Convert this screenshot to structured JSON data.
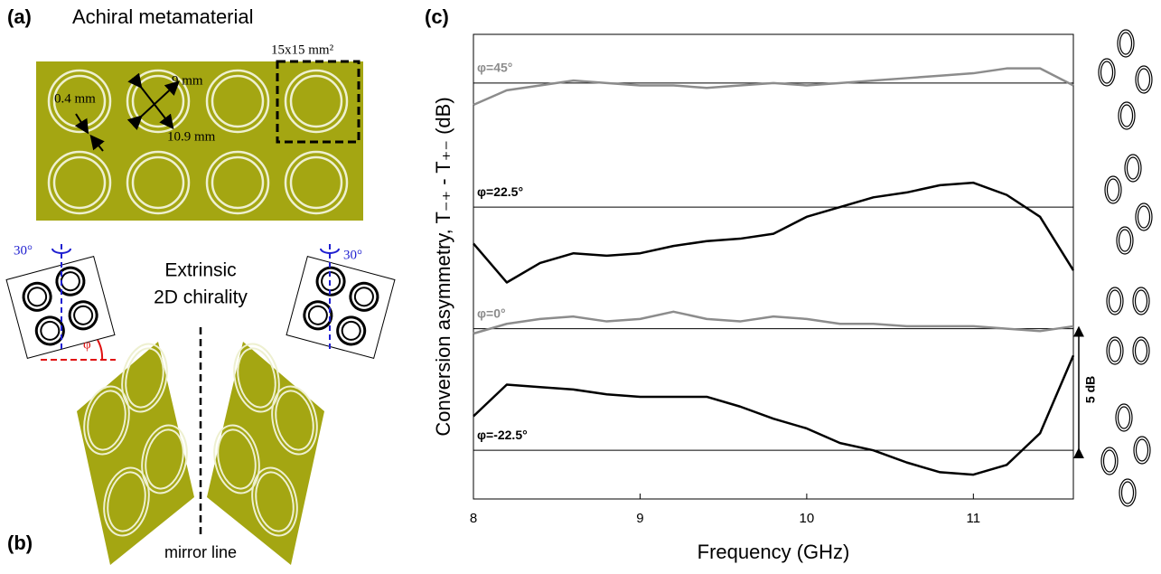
{
  "panel_a": {
    "label": "(a)",
    "title": "Achiral metamaterial",
    "cell_size": "15x15 mm²",
    "ring_width": "0.4 mm",
    "inner_diameter": "9 mm",
    "outer_diameter": "10.9 mm"
  },
  "panel_b": {
    "label": "(b)",
    "title_line1": "Extrinsic",
    "title_line2": "2D chirality",
    "mirror": "mirror line",
    "tilt_left": "30°",
    "tilt_right": "30°",
    "angle": "φ"
  },
  "chart_data": {
    "type": "line",
    "panel_label": "(c)",
    "x_label": "Frequency (GHz)",
    "y_label": "Conversion asymmetry, T₋₊ - T₊₋ (dB)",
    "x": [
      8.0,
      8.2,
      8.4,
      8.6,
      8.8,
      9.0,
      9.2,
      9.4,
      9.6,
      9.8,
      10.0,
      10.2,
      10.4,
      10.6,
      10.8,
      11.0,
      11.2,
      11.4,
      11.6
    ],
    "xlim": [
      8,
      11.6
    ],
    "xticks": [
      8,
      9,
      10,
      11
    ],
    "ylim": [
      -2,
      17.1
    ],
    "series": [
      {
        "name": "φ=45°",
        "color": "#8c8c8c",
        "baseline": 15.1,
        "values": [
          14.2,
          14.8,
          15.0,
          15.2,
          15.1,
          15.0,
          15.0,
          14.9,
          15.0,
          15.1,
          15.0,
          15.1,
          15.2,
          15.3,
          15.4,
          15.5,
          15.7,
          15.7,
          15.0
        ]
      },
      {
        "name": "φ=22.5°",
        "color": "#000000",
        "baseline": 10,
        "values": [
          8.5,
          6.9,
          7.7,
          8.1,
          8.0,
          8.1,
          8.4,
          8.6,
          8.7,
          8.9,
          9.6,
          10.0,
          10.4,
          10.6,
          10.9,
          11.0,
          10.5,
          9.6,
          7.4
        ]
      },
      {
        "name": "φ=0°",
        "color": "#8c8c8c",
        "baseline": 5,
        "values": [
          4.8,
          5.2,
          5.4,
          5.5,
          5.3,
          5.4,
          5.7,
          5.4,
          5.3,
          5.5,
          5.4,
          5.2,
          5.2,
          5.1,
          5.1,
          5.1,
          5.0,
          4.9,
          5.1
        ]
      },
      {
        "name": "φ=-22.5°",
        "color": "#000000",
        "baseline": 0,
        "values": [
          1.4,
          2.7,
          2.6,
          2.5,
          2.3,
          2.2,
          2.2,
          2.2,
          1.8,
          1.3,
          0.9,
          0.3,
          0.0,
          -0.5,
          -0.9,
          -1.0,
          -0.6,
          0.7,
          3.9
        ]
      }
    ],
    "scale_bar": {
      "label": "5 dB",
      "from": 0,
      "to": 5
    }
  }
}
